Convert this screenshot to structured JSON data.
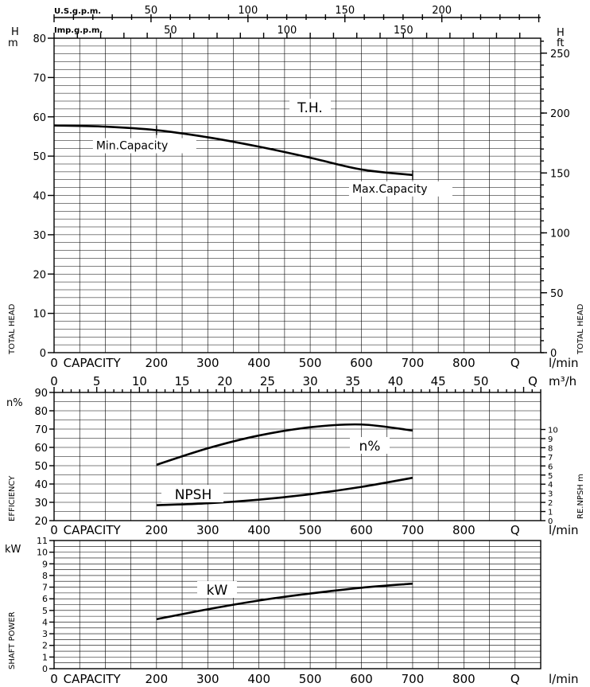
{
  "chart_data": [
    {
      "type": "line",
      "panel": "total-head",
      "title": "T.H.",
      "xlabel": "CAPACITY",
      "x_unit": "l/min",
      "ylabel": "TOTAL HEAD",
      "y_unit": "m",
      "y_symbol": "H",
      "y2_unit": "ft",
      "y2_symbol": "H",
      "xlim": [
        0,
        950
      ],
      "ylim": [
        0,
        80
      ],
      "x_ticks": [
        0,
        100,
        200,
        300,
        400,
        500,
        600,
        700,
        800,
        900
      ],
      "x_tick_labels": [
        "0",
        "CAPACITY",
        "200",
        "300",
        "400",
        "500",
        "600",
        "700",
        "800",
        "Q"
      ],
      "y_ticks": [
        0,
        10,
        20,
        30,
        40,
        50,
        60,
        70,
        80
      ],
      "y2_ticks": [
        0,
        50,
        100,
        150,
        200,
        250
      ],
      "us_gpm_ticks": [
        50,
        100,
        150,
        200
      ],
      "us_gpm_label": "U.S.g.p.m.",
      "imp_gpm_ticks": [
        50,
        100,
        150
      ],
      "imp_gpm_label": "Imp.g.p.m.",
      "series": [
        {
          "x": [
            0,
            100,
            200,
            300,
            400,
            500,
            600,
            700
          ],
          "y": [
            57.8,
            57.5,
            56.6,
            54.8,
            52.4,
            49.6,
            46.6,
            45.2
          ]
        }
      ],
      "annotations": [
        {
          "text": "Min.Capacity",
          "x": 200,
          "y": 56.6
        },
        {
          "text": "Max.Capacity",
          "x": 700,
          "y": 45.2
        }
      ],
      "grid": true
    },
    {
      "type": "line",
      "panel": "efficiency",
      "xlabel": "CAPACITY",
      "x_unit": "l/min",
      "x2_unit": "m³/h",
      "ylabel": "EFFICIENCY",
      "y_unit": "n%",
      "y2_label": "RE.NPSH m",
      "xlim": [
        0,
        950
      ],
      "ylim": [
        20,
        90
      ],
      "y_ticks": [
        20,
        30,
        40,
        50,
        60,
        70,
        80,
        90
      ],
      "y2_ticks": [
        0,
        1,
        2,
        3,
        4,
        5,
        6,
        7,
        8,
        9,
        10
      ],
      "m3h_ticks": [
        0,
        5,
        10,
        15,
        20,
        25,
        30,
        35,
        40,
        45,
        50
      ],
      "m3h_end_label": "Q",
      "x_tick_labels": [
        "0",
        "CAPACITY",
        "200",
        "300",
        "400",
        "500",
        "600",
        "700",
        "800",
        "Q"
      ],
      "series": [
        {
          "name": "n%",
          "x": [
            200,
            300,
            400,
            500,
            600,
            700
          ],
          "y": [
            50.5,
            59.5,
            66.5,
            71,
            72.5,
            69.2
          ]
        },
        {
          "name": "NPSH",
          "axis": "right",
          "x": [
            200,
            300,
            400,
            500,
            600,
            700
          ],
          "y": [
            1.7,
            1.9,
            2.3,
            2.9,
            3.7,
            4.7
          ]
        }
      ],
      "grid": true
    },
    {
      "type": "line",
      "panel": "shaft-power",
      "xlabel": "CAPACITY",
      "x_unit": "l/min",
      "ylabel": "SHAFT POWER",
      "y_unit": "kW",
      "xlim": [
        0,
        950
      ],
      "ylim": [
        0,
        11
      ],
      "y_ticks": [
        0,
        1,
        2,
        3,
        4,
        5,
        6,
        7,
        8,
        9,
        10,
        11
      ],
      "x_tick_labels": [
        "0",
        "CAPACITY",
        "200",
        "300",
        "400",
        "500",
        "600",
        "700",
        "800",
        "Q"
      ],
      "series": [
        {
          "name": "kW",
          "x": [
            200,
            300,
            400,
            500,
            600,
            700
          ],
          "y": [
            4.25,
            5.1,
            5.85,
            6.45,
            6.95,
            7.3
          ]
        }
      ],
      "grid": true
    }
  ]
}
